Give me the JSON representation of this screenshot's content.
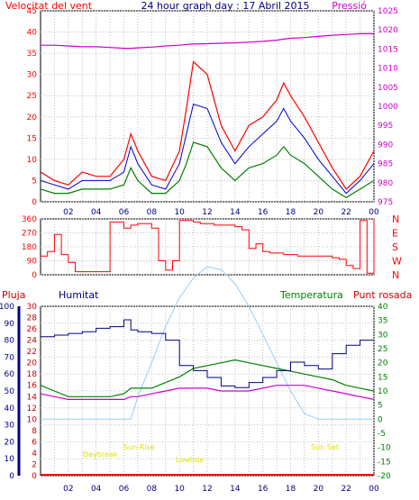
{
  "header": {
    "left_label": "Velocitat del vent",
    "title": "24 hour graph day : 17 Abril 2015",
    "right_label": "Pressió"
  },
  "colors": {
    "red": "#ff0000",
    "darkred": "#cc0000",
    "blue": "#0000cc",
    "navy": "#000080",
    "green": "#008000",
    "magenta": "#cc00cc",
    "lightblue": "#99ccff",
    "yellow": "#e0e000",
    "grid": "#c0c0c0"
  },
  "chart_data": [
    {
      "type": "line",
      "id": "wind",
      "title": "24 hour graph day : 17 Abril 2015",
      "ylabel": "Velocitat del vent",
      "y2label": "Pressió",
      "x_ticks": [
        "02",
        "04",
        "06",
        "08",
        "10",
        "12",
        "14",
        "16",
        "18",
        "20",
        "22",
        "00"
      ],
      "y_ticks": [
        0,
        5,
        10,
        15,
        20,
        25,
        30,
        35,
        40,
        45
      ],
      "y2_ticks": [
        975,
        980,
        985,
        990,
        995,
        1000,
        1005,
        1010,
        1015,
        1020,
        1025
      ],
      "ylim": [
        0,
        45
      ],
      "y2lim": [
        975,
        1025
      ],
      "x": [
        0,
        1,
        2,
        3,
        4,
        5,
        6,
        6.5,
        7,
        8,
        9,
        10,
        10.5,
        11,
        12,
        13,
        14,
        15,
        16,
        17,
        17.5,
        18,
        19,
        20,
        21,
        22,
        23,
        24
      ],
      "series": [
        {
          "values": [
            7,
            5,
            4,
            7,
            6,
            6,
            10,
            16,
            12,
            6,
            5,
            12,
            22,
            33,
            30,
            18,
            12,
            18,
            20,
            24,
            28,
            25,
            20,
            14,
            8,
            3,
            6,
            12
          ]
        },
        {
          "values": [
            5,
            4,
            3,
            5,
            5,
            5,
            7,
            13,
            9,
            4,
            3,
            9,
            16,
            23,
            22,
            14,
            9,
            13,
            16,
            19,
            22,
            19,
            15,
            10,
            6,
            2,
            5,
            9
          ]
        },
        {
          "values": [
            3,
            2,
            2,
            3,
            3,
            3,
            4,
            8,
            5,
            2,
            2,
            5,
            9,
            14,
            13,
            8,
            5,
            8,
            9,
            11,
            13,
            11,
            9,
            6,
            3,
            1,
            3,
            5
          ]
        },
        {
          "values": [
            1016,
            1016,
            1015.8,
            1015.6,
            1015.6,
            1015.4,
            1015.2,
            1015.2,
            1015.3,
            1015.5,
            1015.8,
            1016,
            1016.2,
            1016.3,
            1016.4,
            1016.5,
            1016.6,
            1016.8,
            1017,
            1017.3,
            1017.6,
            1017.8,
            1018,
            1018.3,
            1018.6,
            1018.8,
            1019,
            1019
          ]
        }
      ]
    },
    {
      "type": "line",
      "id": "direction",
      "y_ticks": [
        0,
        90,
        180,
        270,
        360
      ],
      "y2_labels": [
        "N",
        "W",
        "S",
        "E",
        "N"
      ],
      "ylim": [
        0,
        360
      ],
      "x": [
        0,
        0.5,
        1,
        1.5,
        2,
        2.5,
        3,
        3.5,
        4,
        4.5,
        5,
        5.5,
        6,
        6.5,
        7,
        7.5,
        8,
        8.5,
        9,
        9.5,
        10,
        10.5,
        11,
        11.5,
        12,
        12.5,
        13,
        13.5,
        14,
        14.5,
        15,
        15.5,
        16,
        16.5,
        17,
        17.5,
        18,
        18.5,
        19,
        19.5,
        20,
        20.5,
        21,
        21.5,
        22,
        22.5,
        23,
        23.5,
        24
      ],
      "values": [
        120,
        150,
        260,
        130,
        80,
        20,
        20,
        20,
        20,
        20,
        340,
        340,
        300,
        320,
        330,
        330,
        300,
        90,
        30,
        90,
        350,
        350,
        340,
        330,
        330,
        320,
        320,
        320,
        310,
        290,
        170,
        200,
        150,
        140,
        140,
        130,
        130,
        120,
        120,
        120,
        120,
        120,
        110,
        100,
        60,
        40,
        350,
        10,
        360
      ]
    },
    {
      "type": "line",
      "id": "humidity_temp",
      "labels": [
        "Pluja",
        "Humitat",
        "Temperatura",
        "Punt rosada"
      ],
      "sun_labels": [
        "Daybreak",
        "Sun Rise",
        "Lowtide",
        "Sun Set"
      ],
      "x_ticks": [
        "02",
        "04",
        "06",
        "08",
        "10",
        "12",
        "14",
        "16",
        "18",
        "20",
        "22",
        "00"
      ],
      "rain_ticks": [
        0,
        2,
        4,
        6,
        8,
        10,
        12,
        14,
        16,
        18,
        20,
        22,
        24,
        26,
        28,
        30
      ],
      "humidity_ticks": [
        0,
        10,
        20,
        30,
        40,
        50,
        60,
        70,
        80,
        90,
        100
      ],
      "temp_ticks": [
        -20,
        -15,
        -10,
        -5,
        0,
        5,
        10,
        15,
        20,
        25,
        30,
        35,
        40
      ],
      "humidity_lim": [
        0,
        100
      ],
      "temp_lim": [
        -20,
        40
      ],
      "x": [
        0,
        1,
        2,
        3,
        4,
        5,
        6,
        6.5,
        7,
        8,
        9,
        10,
        11,
        12,
        13,
        14,
        15,
        16,
        17,
        18,
        19,
        20,
        21,
        22,
        23,
        24
      ],
      "series": [
        {
          "name": "Humitat",
          "values": [
            82,
            83,
            84,
            85,
            87,
            88,
            92,
            86,
            85,
            84,
            80,
            65,
            62,
            58,
            53,
            52,
            55,
            58,
            62,
            67,
            65,
            63,
            72,
            77,
            80,
            80
          ]
        },
        {
          "name": "Temperatura",
          "values": [
            12,
            10,
            8,
            8,
            8,
            8,
            9,
            11,
            11,
            11,
            13,
            15,
            18,
            19,
            20,
            21,
            20,
            19,
            18,
            17,
            16,
            15,
            14,
            12,
            11,
            10
          ]
        },
        {
          "name": "Punt rosada",
          "values": [
            9,
            8,
            7,
            7,
            7,
            7,
            7,
            8,
            8,
            9,
            10,
            11,
            11,
            11,
            10,
            10,
            10,
            11,
            12,
            12,
            12,
            11,
            10,
            9,
            8,
            7
          ]
        },
        {
          "name": "Sun",
          "values": [
            0,
            0,
            0,
            0,
            0,
            0,
            0,
            0,
            8,
            20,
            33,
            43,
            50,
            54,
            53,
            48,
            40,
            30,
            20,
            10,
            2,
            0,
            0,
            0,
            0,
            0
          ]
        }
      ]
    }
  ]
}
